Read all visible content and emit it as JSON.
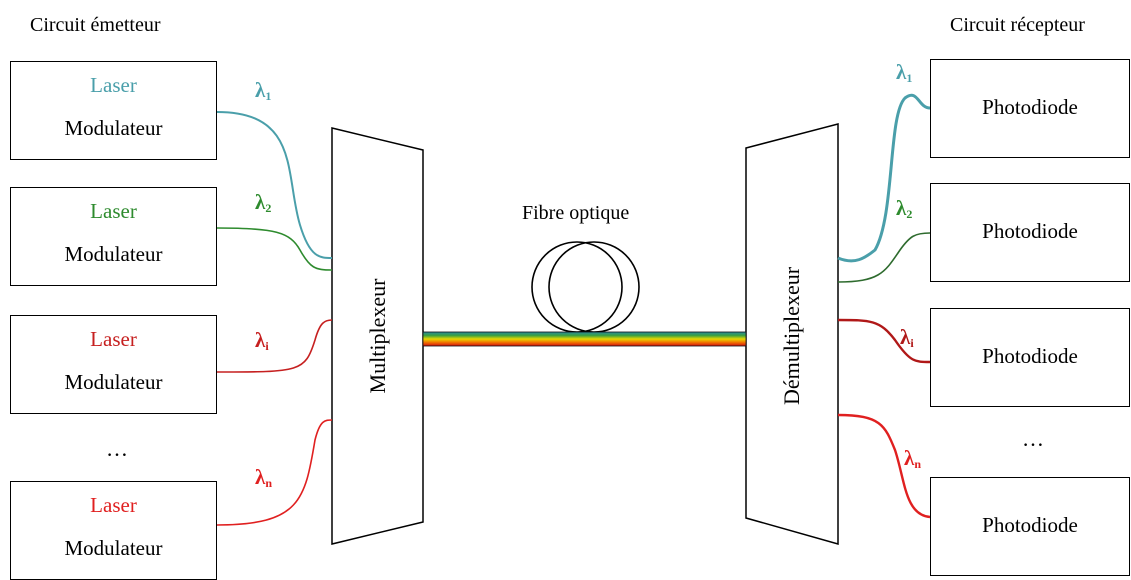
{
  "titles": {
    "transmitter": "Circuit émetteur",
    "receiver": "Circuit récepteur",
    "fiber": "Fibre optique"
  },
  "mux_label": "Multiplexeur",
  "demux_label": "Démultiplexeur",
  "transmitters": [
    {
      "laser": "Laser",
      "modulator": "Modulateur",
      "color": "#4a9faa"
    },
    {
      "laser": "Laser",
      "modulator": "Modulateur",
      "color": "#2e8b2e"
    },
    {
      "laser": "Laser",
      "modulator": "Modulateur",
      "color": "#c62020"
    },
    {
      "laser": "Laser",
      "modulator": "Modulateur",
      "color": "#e02020"
    }
  ],
  "receivers": [
    {
      "label": "Photodiode"
    },
    {
      "label": "Photodiode"
    },
    {
      "label": "Photodiode"
    },
    {
      "label": "Photodiode"
    }
  ],
  "ellipsis": "…",
  "wavelengths": [
    {
      "symbol": "λ",
      "sub": "1",
      "color": "#4a9faa"
    },
    {
      "symbol": "λ",
      "sub": "2",
      "color": "#2e8b2e"
    },
    {
      "symbol": "λ",
      "sub": "i",
      "color": "#c62020"
    },
    {
      "symbol": "λ",
      "sub": "n",
      "color": "#e02020"
    }
  ]
}
